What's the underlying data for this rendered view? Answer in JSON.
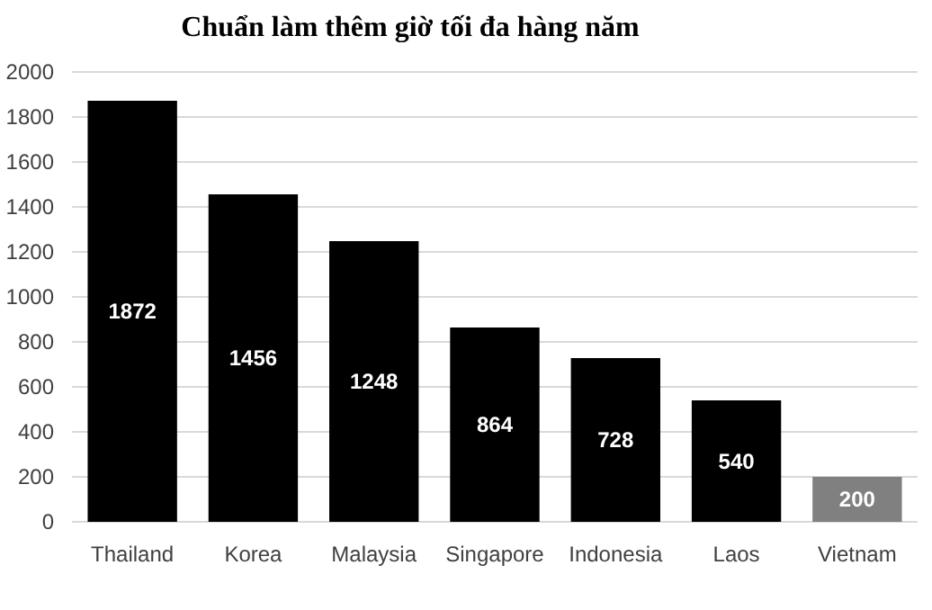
{
  "chart_data": {
    "type": "bar",
    "title": "Chuẩn làm thêm giờ tối đa hàng năm",
    "categories": [
      "Thailand",
      "Korea",
      "Malaysia",
      "Singapore",
      "Indonesia",
      "Laos",
      "Vietnam"
    ],
    "values": [
      1872,
      1456,
      1248,
      864,
      728,
      540,
      200
    ],
    "colors": [
      "#000000",
      "#000000",
      "#000000",
      "#000000",
      "#000000",
      "#000000",
      "#808080"
    ],
    "ylim": [
      0,
      2000
    ],
    "yticks": [
      0,
      200,
      400,
      600,
      800,
      1000,
      1200,
      1400,
      1600,
      1800,
      2000
    ],
    "grid": "y",
    "data_labels": true
  }
}
